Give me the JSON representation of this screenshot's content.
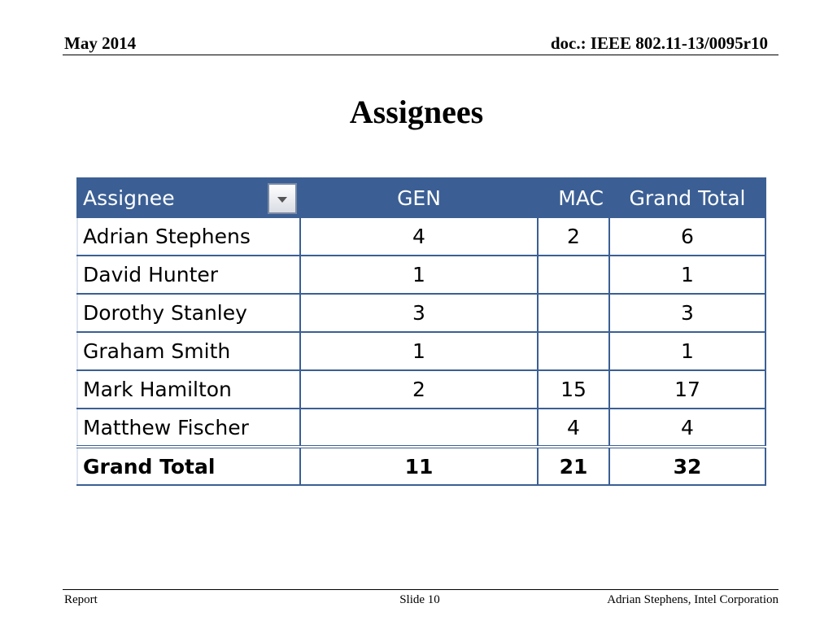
{
  "header": {
    "date": "May 2014",
    "doc": "doc.: IEEE 802.11-13/0095r10"
  },
  "title": "Assignees",
  "table": {
    "columns": [
      "Assignee",
      "GEN",
      "MAC",
      "Grand Total"
    ],
    "filter_icon": "dropdown-arrow-icon",
    "rows": [
      {
        "name": "Adrian Stephens",
        "gen": "4",
        "mac": "2",
        "total": "6"
      },
      {
        "name": "David Hunter",
        "gen": "1",
        "mac": "",
        "total": "1"
      },
      {
        "name": "Dorothy Stanley",
        "gen": "3",
        "mac": "",
        "total": "3"
      },
      {
        "name": "Graham Smith",
        "gen": "1",
        "mac": "",
        "total": "1"
      },
      {
        "name": "Mark Hamilton",
        "gen": "2",
        "mac": "15",
        "total": "17"
      },
      {
        "name": "Matthew Fischer",
        "gen": "",
        "mac": "4",
        "total": "4"
      }
    ],
    "grand_total": {
      "name": "Grand Total",
      "gen": "11",
      "mac": "21",
      "total": "32"
    },
    "colors": {
      "header_bg": "#3b5f94",
      "header_text": "#ffffff",
      "grid": "#3b5f94"
    }
  },
  "footer": {
    "left": "Report",
    "center": "Slide 10",
    "right": "Adrian Stephens, Intel Corporation"
  }
}
